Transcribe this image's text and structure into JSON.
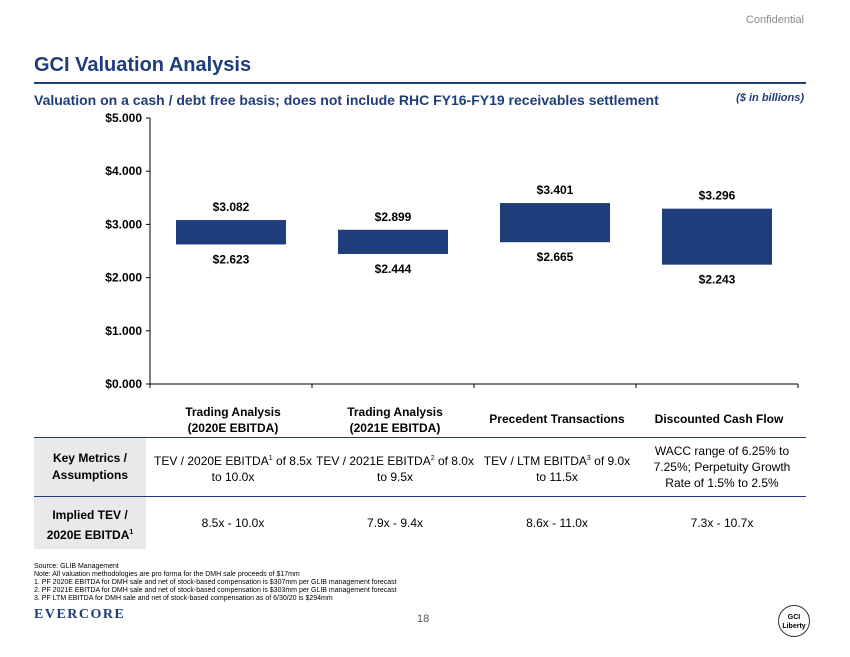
{
  "header": {
    "confidential": "Confidential",
    "title": "GCI Valuation Analysis",
    "subtitle": "Valuation on a cash / debt free basis; does not include RHC FY16-FY19 receivables settlement",
    "units": "($ in billions)"
  },
  "colors": {
    "accent": "#1f3d7a",
    "bar": "#1f3d7a",
    "label_bg": "#e9e9e9"
  },
  "chart_data": {
    "type": "floating_bar",
    "y_ticks": [
      "$5.000",
      "$4.000",
      "$3.000",
      "$2.000",
      "$1.000",
      "$0.000"
    ],
    "ylim": [
      0,
      5
    ],
    "grid": false,
    "categories": [
      "Trading Analysis (2020E EBITDA)",
      "Trading Analysis (2021E EBITDA)",
      "Precedent Transactions",
      "Discounted Cash Flow"
    ],
    "series": [
      {
        "low": 2.623,
        "high": 3.082,
        "low_label": "$2.623",
        "high_label": "$3.082"
      },
      {
        "low": 2.444,
        "high": 2.899,
        "low_label": "$2.444",
        "high_label": "$2.899"
      },
      {
        "low": 2.665,
        "high": 3.401,
        "low_label": "$2.665",
        "high_label": "$3.401"
      },
      {
        "low": 2.243,
        "high": 3.296,
        "low_label": "$2.243",
        "high_label": "$3.296"
      }
    ]
  },
  "table": {
    "columns": [
      {
        "line1": "Trading Analysis",
        "line2": "(2020E EBITDA)"
      },
      {
        "line1": "Trading Analysis",
        "line2": "(2021E EBITDA)"
      },
      {
        "line1": "Precedent Transactions",
        "line2": ""
      },
      {
        "line1": "Discounted Cash Flow",
        "line2": ""
      }
    ],
    "row1_label": {
      "line1": "Key Metrics /",
      "line2": "Assumptions"
    },
    "row1": [
      {
        "pre": "TEV / 2020E EBITDA",
        "sup": "1",
        "post": " of 8.5x",
        "line2": "to 10.0x"
      },
      {
        "pre": "TEV / 2021E EBITDA",
        "sup": "2",
        "post": " of 8.0x",
        "line2": "to 9.5x"
      },
      {
        "pre": "TEV / LTM EBITDA",
        "sup": "3",
        "post": " of 9.0x",
        "line2": "to 11.5x"
      },
      {
        "line1": "WACC range of 6.25% to",
        "line2": "7.25%; Perpetuity Growth",
        "line3": "Rate of 1.5% to 2.5%"
      }
    ],
    "row2_label": {
      "line1": "Implied TEV /",
      "line2": "2020E EBITDA",
      "sup": "1"
    },
    "row2": [
      "8.5x - 10.0x",
      "7.9x - 9.4x",
      "8.6x - 11.0x",
      "7.3x - 10.7x"
    ]
  },
  "footnotes": [
    "Source:  GLIB Management",
    "Note: All valuation methodologies are pro forma for the DMH sale proceeds of $17mm",
    "1.      PF 2020E EBITDA for DMH sale and net of stock-based compensation is $307mm per GLIB management forecast",
    "2.      PF 2021E EBITDA for DMH sale and net of stock-based compensation is $303mm per GLIB management forecast",
    "3.      PF LTM EBITDA for DMH sale and net of stock-based compensation as of 6/30/20 is $294mm"
  ],
  "footer": {
    "logo": "EVERCORE",
    "page": "18",
    "gci_line1": "GCI",
    "gci_line2": "Liberty"
  }
}
